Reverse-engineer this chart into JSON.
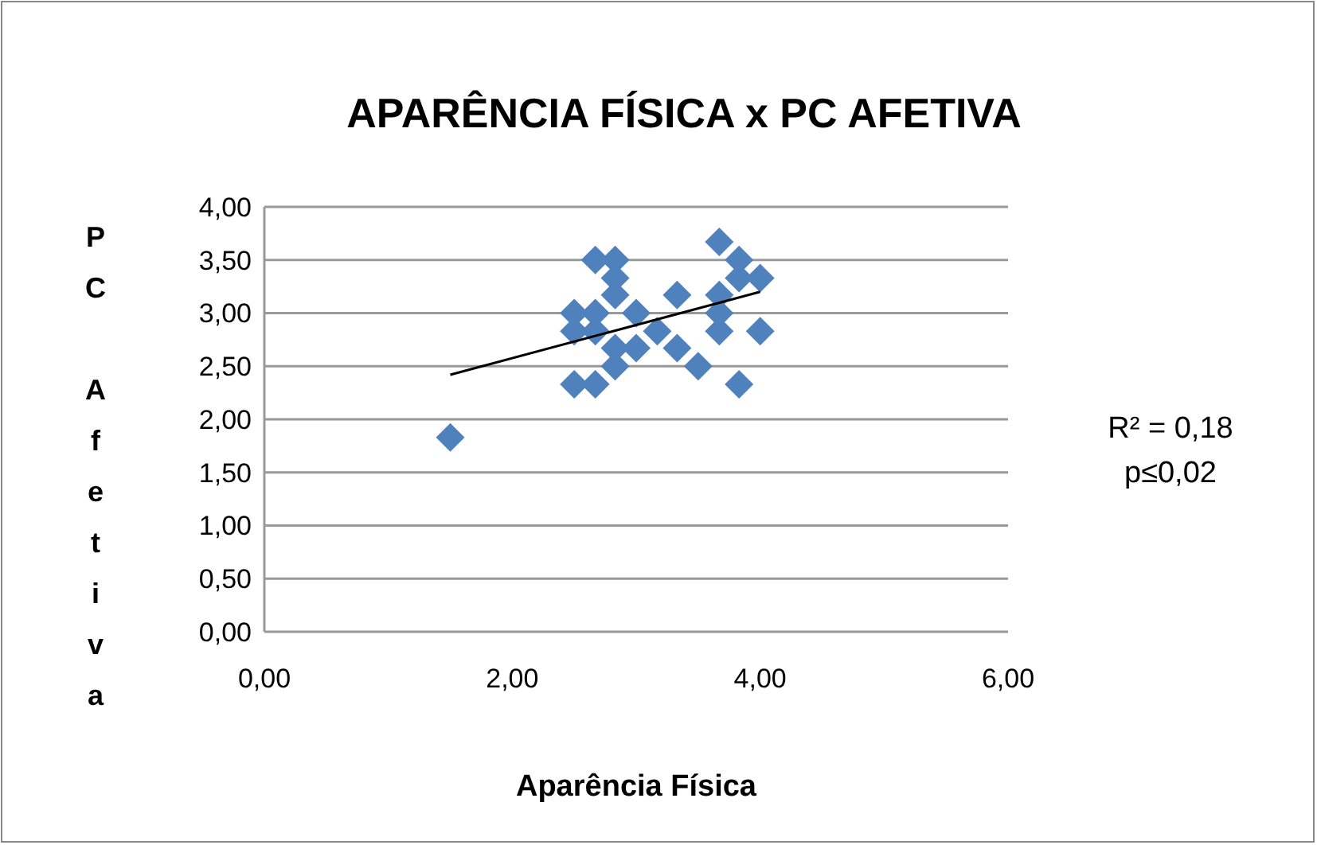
{
  "chart_data": {
    "type": "scatter",
    "title": "APARÊNCIA FÍSICA  x PC AFETIVA",
    "xlabel": "Aparência Física",
    "ylabel": "PC Afetiva",
    "xlim": [
      0,
      6
    ],
    "xticks": [
      {
        "value": 0,
        "label": "0,00"
      },
      {
        "value": 2,
        "label": "2,00"
      },
      {
        "value": 4,
        "label": "4,00"
      },
      {
        "value": 6,
        "label": "6,00"
      }
    ],
    "ylim": [
      0,
      4
    ],
    "yticks": [
      {
        "value": 0,
        "label": "0,00"
      },
      {
        "value": 0.5,
        "label": "0,50"
      },
      {
        "value": 1,
        "label": "1,00"
      },
      {
        "value": 1.5,
        "label": "1,50"
      },
      {
        "value": 2,
        "label": "2,00"
      },
      {
        "value": 2.5,
        "label": "2,50"
      },
      {
        "value": 3,
        "label": "3,00"
      },
      {
        "value": 3.5,
        "label": "3,50"
      },
      {
        "value": 4,
        "label": "4,00"
      }
    ],
    "grid": "y",
    "series": [
      {
        "marker": "diamond",
        "color": "#4f81bd",
        "x": [
          1.5,
          2.5,
          2.67,
          2.5,
          2.5,
          2.67,
          2.67,
          2.67,
          2.83,
          2.83,
          2.83,
          2.83,
          2.83,
          3.0,
          3.0,
          3.17,
          3.33,
          3.33,
          3.5,
          3.67,
          3.67,
          3.67,
          3.67,
          3.83,
          3.83,
          3.83,
          4.0,
          4.0
        ],
        "values": [
          1.83,
          2.33,
          2.33,
          2.83,
          3.0,
          2.83,
          3.0,
          3.5,
          3.5,
          3.33,
          3.17,
          2.67,
          2.5,
          3.0,
          2.67,
          2.83,
          3.17,
          2.67,
          2.5,
          3.67,
          3.17,
          3.0,
          2.83,
          3.5,
          3.33,
          2.33,
          3.33,
          2.83
        ]
      },
      {
        "type": "line",
        "color": "#000000",
        "x": [
          1.5,
          4.0
        ],
        "values": [
          2.42,
          3.2
        ]
      }
    ],
    "annotations": [
      "R² = 0,18",
      "p≤0,02"
    ]
  }
}
